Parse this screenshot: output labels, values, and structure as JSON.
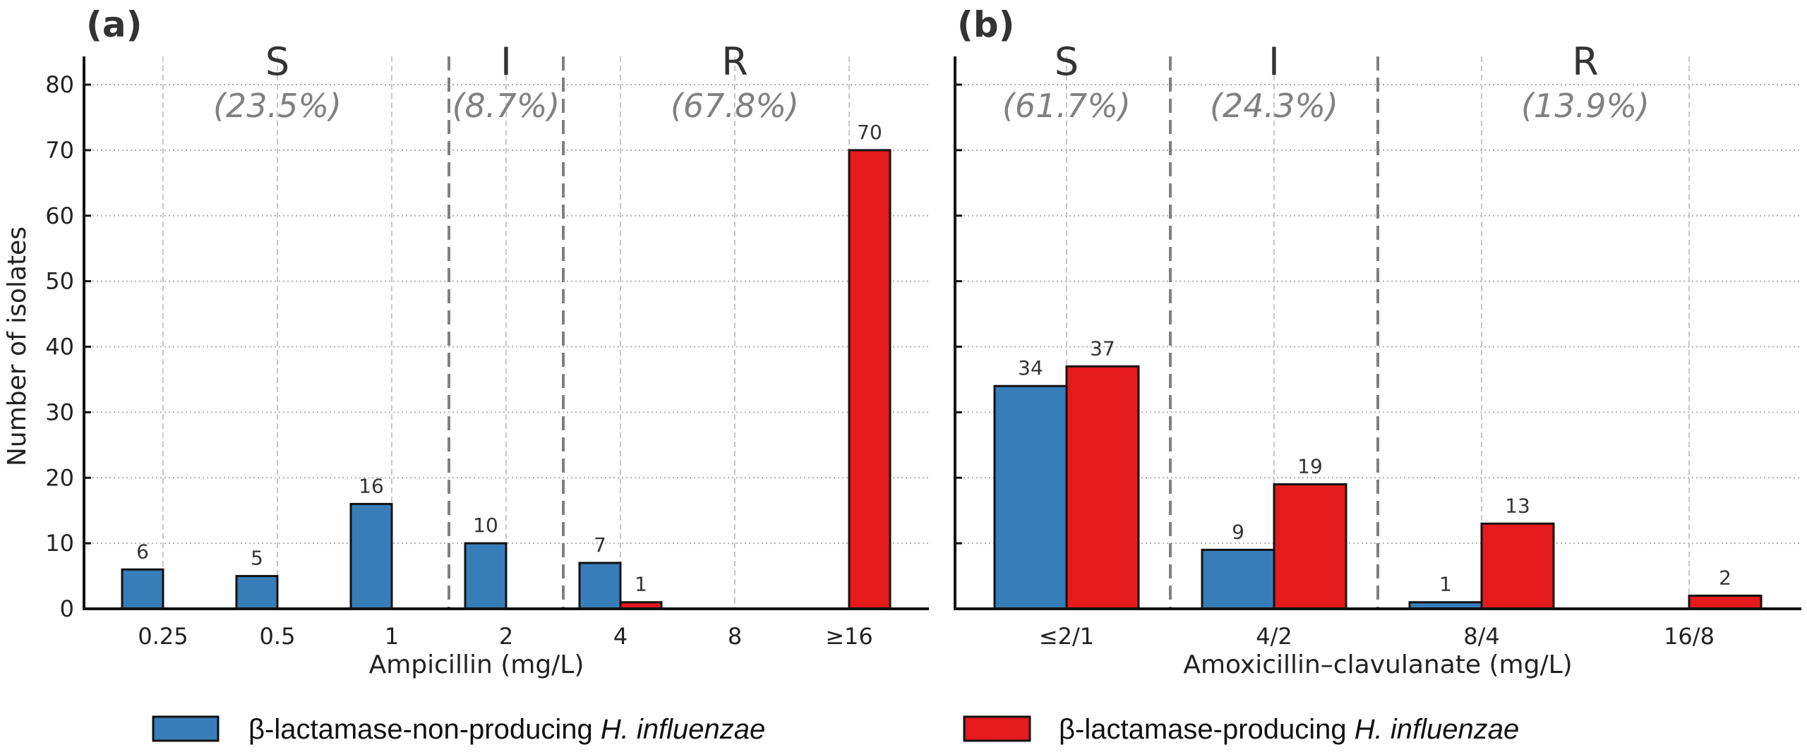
{
  "chart_data": [
    {
      "panel": "(a)",
      "type": "bar",
      "xlabel": "Ampicillin (mg/L)",
      "ylabel": "Number of isolates",
      "ylim": [
        0,
        80
      ],
      "yticks": [
        "0",
        "10",
        "20",
        "30",
        "40",
        "50",
        "60",
        "70",
        "80"
      ],
      "categories": [
        "0.25",
        "0.5",
        "1",
        "2",
        "4",
        "8",
        "≥16"
      ],
      "series": [
        {
          "name": "β-lactamase-non-producing H. influenzae",
          "color": "#377eb8",
          "values": [
            6,
            5,
            16,
            10,
            7,
            0,
            0
          ]
        },
        {
          "name": "β-lactamase-producing H. influenzae",
          "color": "#e41a1c",
          "values": [
            0,
            0,
            0,
            0,
            1,
            0,
            70
          ]
        }
      ],
      "breakpoints_after_category_index": [
        2,
        3
      ],
      "interpretive_categories": [
        {
          "label": "S",
          "percent": "(23.5%)"
        },
        {
          "label": "I",
          "percent": "(8.7%)"
        },
        {
          "label": "R",
          "percent": "(67.8%)"
        }
      ],
      "grid": true
    },
    {
      "panel": "(b)",
      "type": "bar",
      "xlabel": "Amoxicillin–clavulanate (mg/L)",
      "ylabel": "",
      "ylim": [
        0,
        80
      ],
      "categories": [
        "≤2/1",
        "4/2",
        "8/4",
        "16/8"
      ],
      "series": [
        {
          "name": "β-lactamase-non-producing H. influenzae",
          "color": "#377eb8",
          "values": [
            34,
            9,
            1,
            0
          ]
        },
        {
          "name": "β-lactamase-producing H. influenzae",
          "color": "#e41a1c",
          "values": [
            37,
            19,
            13,
            2
          ]
        }
      ],
      "breakpoints_after_category_index": [
        0,
        1
      ],
      "interpretive_categories": [
        {
          "label": "S",
          "percent": "(61.7%)"
        },
        {
          "label": "I",
          "percent": "(24.3%)"
        },
        {
          "label": "R",
          "percent": "(13.9%)"
        }
      ],
      "grid": true
    }
  ],
  "legend": {
    "placement": "bottom-center",
    "items": [
      {
        "prefix": "β-lactamase-non-producing ",
        "italic": "H. influenzae",
        "color": "#377eb8"
      },
      {
        "prefix": "β-lactamase-producing ",
        "italic": "H. influenzae",
        "color": "#e41a1c"
      }
    ]
  }
}
